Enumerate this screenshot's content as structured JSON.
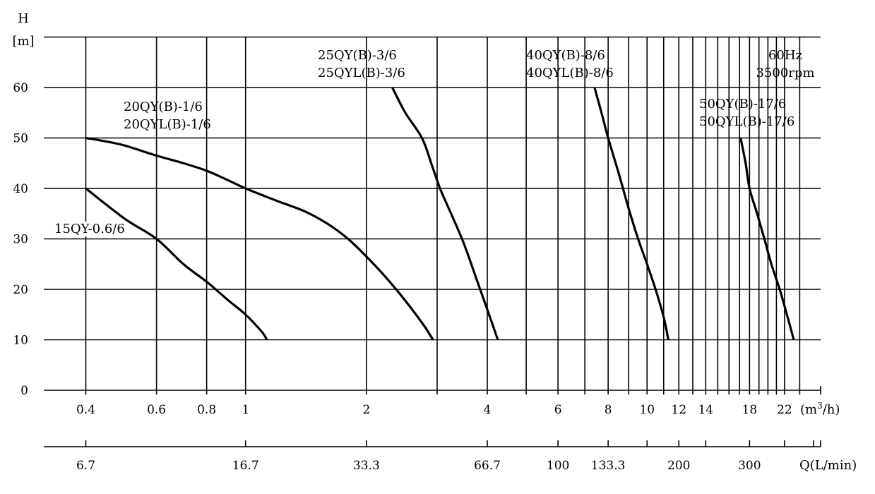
{
  "chart_data": {
    "type": "line",
    "x_scale": "log",
    "y_axis": {
      "label_top": "H",
      "label_unit": "[m]",
      "ticks": [
        0,
        10,
        20,
        30,
        40,
        50,
        60
      ],
      "ylim": [
        0,
        70
      ],
      "grid": true
    },
    "x_axis_primary": {
      "unit_label": "(m",
      "unit_sup": "3",
      "unit_end": "/h)",
      "ticks": [
        {
          "value": 0.4,
          "label": "0.4"
        },
        {
          "value": 0.6,
          "label": "0.6"
        },
        {
          "value": 0.8,
          "label": "0.8"
        },
        {
          "value": 1,
          "label": "1"
        },
        {
          "value": 2,
          "label": "2"
        },
        {
          "value": 4,
          "label": "4"
        },
        {
          "value": 6,
          "label": "6"
        },
        {
          "value": 8,
          "label": "8"
        },
        {
          "value": 10,
          "label": "10"
        },
        {
          "value": 12,
          "label": "12"
        },
        {
          "value": 14,
          "label": "14"
        },
        {
          "value": 18,
          "label": "18"
        },
        {
          "value": 22,
          "label": "22"
        }
      ],
      "gridlines": [
        0.4,
        0.6,
        0.8,
        1,
        2,
        3,
        4,
        5,
        6,
        7,
        8,
        9,
        10,
        11,
        12,
        13,
        14,
        15,
        16,
        17,
        18,
        19,
        20,
        21,
        22,
        24
      ],
      "xlim": [
        0.3,
        30
      ]
    },
    "x_axis_secondary": {
      "label": "Q(L/min)",
      "ticks": [
        {
          "value": 0.4,
          "label": "6.7"
        },
        {
          "value": 1,
          "label": "16.7"
        },
        {
          "value": 2,
          "label": "33.3"
        },
        {
          "value": 4,
          "label": "66.7"
        },
        {
          "value": 6,
          "label": "100"
        },
        {
          "value": 8,
          "label": "133.3"
        },
        {
          "value": 12,
          "label": "200"
        },
        {
          "value": 18,
          "label": "300"
        }
      ],
      "minor_ticks": [
        0.4,
        1,
        2,
        4,
        6,
        8,
        10,
        12,
        14,
        18,
        22,
        26
      ]
    },
    "annotation": {
      "line1": "60Hz",
      "line2": "3500rpm"
    },
    "series": [
      {
        "name": "15QY-0.6/6",
        "label_lines": [
          "15QY-0.6/6"
        ],
        "points": [
          [
            0.4,
            40
          ],
          [
            0.5,
            34
          ],
          [
            0.6,
            30
          ],
          [
            0.7,
            25
          ],
          [
            0.8,
            21.5
          ],
          [
            0.9,
            18
          ],
          [
            1.0,
            15
          ],
          [
            1.1,
            11.5
          ],
          [
            1.13,
            10
          ]
        ]
      },
      {
        "name": "20QY(B)-1/6 / 20QYL(B)-1/6",
        "label_lines": [
          "20QY(B)-1/6",
          "20QYL(B)-1/6"
        ],
        "points": [
          [
            0.4,
            50
          ],
          [
            0.45,
            49.3
          ],
          [
            0.5,
            48.5
          ],
          [
            0.6,
            46.5
          ],
          [
            0.7,
            45
          ],
          [
            0.8,
            43.5
          ],
          [
            0.9,
            41.7
          ],
          [
            1.0,
            40
          ],
          [
            1.2,
            37.5
          ],
          [
            1.4,
            35.5
          ],
          [
            1.6,
            33
          ],
          [
            1.8,
            30
          ],
          [
            2.0,
            26.5
          ],
          [
            2.2,
            23
          ],
          [
            2.4,
            19.5
          ],
          [
            2.6,
            16
          ],
          [
            2.8,
            12.5
          ],
          [
            2.93,
            10
          ]
        ]
      },
      {
        "name": "25QY(B)-3/6 / 25QYL(B)-3/6",
        "label_lines": [
          "25QY(B)-3/6",
          "25QYL(B)-3/6"
        ],
        "points": [
          [
            2.32,
            60
          ],
          [
            2.5,
            55
          ],
          [
            2.75,
            50
          ],
          [
            2.9,
            45
          ],
          [
            3.05,
            40
          ],
          [
            3.25,
            35
          ],
          [
            3.5,
            29
          ],
          [
            3.8,
            21
          ],
          [
            4.0,
            16
          ],
          [
            4.25,
            10
          ]
        ]
      },
      {
        "name": "40QY(B)-8/6 / 40QYL(B)-8/6",
        "label_lines": [
          "40QY(B)-8/6",
          "40QYL(B)-8/6"
        ],
        "points": [
          [
            7.4,
            60
          ],
          [
            7.7,
            55
          ],
          [
            8.0,
            50
          ],
          [
            8.5,
            43
          ],
          [
            9.0,
            36
          ],
          [
            9.5,
            30
          ],
          [
            10.0,
            25
          ],
          [
            10.5,
            20
          ],
          [
            11.0,
            14.5
          ],
          [
            11.3,
            10
          ]
        ]
      },
      {
        "name": "50QY(B)-17/6 / 50QYL(B)-17/6",
        "label_lines": [
          "50QY(B)-17/6",
          "50QYL(B)-17/6"
        ],
        "points": [
          [
            17.1,
            50
          ],
          [
            17.6,
            45
          ],
          [
            18.0,
            40
          ],
          [
            18.8,
            35
          ],
          [
            19.6,
            30
          ],
          [
            20.4,
            25
          ],
          [
            21.4,
            20
          ],
          [
            22.3,
            15
          ],
          [
            23.2,
            10
          ]
        ]
      }
    ]
  }
}
